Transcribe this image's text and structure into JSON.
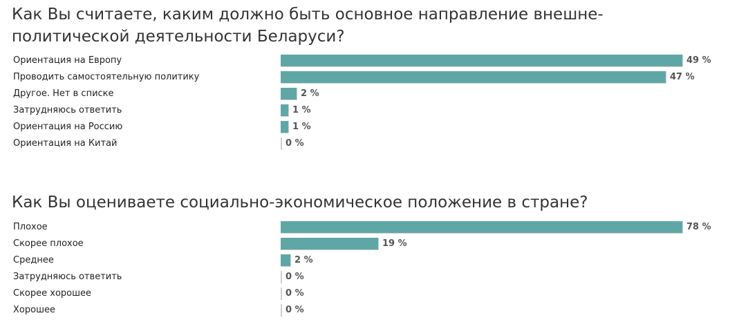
{
  "chart_data": [
    {
      "type": "bar",
      "orientation": "horizontal",
      "title": "Как Вы считаете, каким должно быть основное направление внешне-политической деятельности Беларуси?",
      "title_lines": [
        "Как Вы считаете, каким должно быть основное направление внешне-",
        "политической деятельности Беларуси?"
      ],
      "unit": "%",
      "categories": [
        "Ориентация на Европу",
        "Проводить самостоятельную политику",
        "Другое. Нет в списке",
        "Затрудняюсь ответить",
        "Ориентация на Россию",
        "Ориентация на Китай"
      ],
      "values": [
        49,
        47,
        2,
        1,
        1,
        0
      ],
      "value_labels": [
        "49 %",
        "47 %",
        "2 %",
        "1 %",
        "1 %",
        "0 %"
      ],
      "bar_color": "#5fa7a7",
      "xlim": [
        0,
        49
      ]
    },
    {
      "type": "bar",
      "orientation": "horizontal",
      "title": "Как Вы оцениваете социально-экономическое положение в стране?",
      "title_lines": [
        "Как Вы оцениваете социально-экономическое положение в стране?"
      ],
      "unit": "%",
      "categories": [
        "Плохое",
        "Скорее плохое",
        "Среднее",
        "Затрудняюсь ответить",
        "Скорее хорошее",
        "Хорошее"
      ],
      "values": [
        78,
        19,
        2,
        0,
        0,
        0
      ],
      "value_labels": [
        "78 %",
        "19 %",
        "2 %",
        "0 %",
        "0 %",
        "0 %"
      ],
      "bar_color": "#5fa7a7",
      "xlim": [
        0,
        78
      ]
    }
  ]
}
